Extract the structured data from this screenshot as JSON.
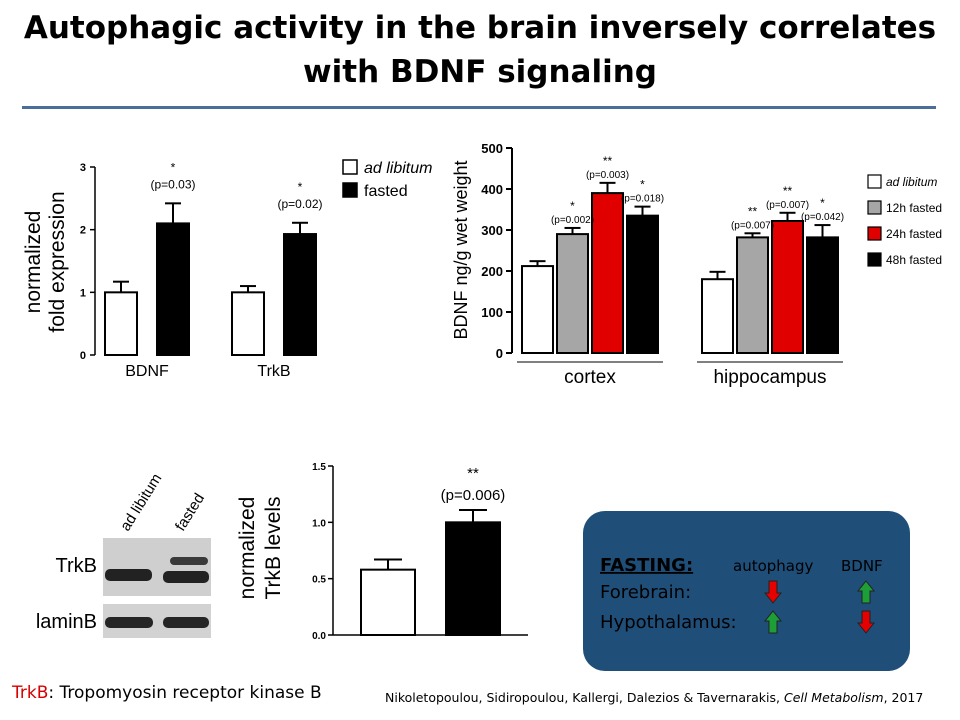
{
  "title": {
    "line1": "Autophagic activity in the brain inversely correlates",
    "line2": "with BDNF signaling"
  },
  "colors": {
    "rule": "#4a6d9a",
    "panel": "#1f4e79",
    "gray": "#a6a6a6",
    "red": "#e00000",
    "black": "#000000",
    "white": "#ffffff",
    "arrow_green": "#1e9e36",
    "arrow_red": "#e60000"
  },
  "chart_data": [
    {
      "type": "bar",
      "ylabel": [
        "normalized",
        "fold expression"
      ],
      "ylim": [
        0,
        3
      ],
      "yticks": [
        "0",
        "1",
        "2",
        "3"
      ],
      "categories": [
        "BDNF",
        "TrkB"
      ],
      "legend": [
        "ad libitum",
        "fasted"
      ],
      "series": [
        {
          "name": "ad libitum",
          "values": [
            1.0,
            1.0
          ],
          "errors": [
            0.17,
            0.1
          ]
        },
        {
          "name": "fasted",
          "values": [
            2.1,
            1.93
          ],
          "errors": [
            0.32,
            0.18
          ]
        }
      ],
      "annotations": [
        {
          "category": "BDNF",
          "stars": "*",
          "p": "(p=0.03)"
        },
        {
          "category": "TrkB",
          "stars": "*",
          "p": "(p=0.02)"
        }
      ]
    },
    {
      "type": "bar",
      "ylabel": "BDNF  ng/g wet weight",
      "ylim": [
        0,
        500
      ],
      "yticks": [
        "0",
        "100",
        "200",
        "300",
        "400",
        "500"
      ],
      "categories": [
        "cortex",
        "hippocampus"
      ],
      "legend": [
        "ad libitum",
        "12h fasted",
        "24h fasted",
        "48h fasted"
      ],
      "series": [
        {
          "name": "ad libitum",
          "values": [
            212,
            180
          ],
          "errors": [
            12,
            18
          ]
        },
        {
          "name": "12h fasted",
          "values": [
            290,
            282
          ],
          "errors": [
            15,
            10
          ]
        },
        {
          "name": "24h fasted",
          "values": [
            390,
            322
          ],
          "errors": [
            25,
            20
          ]
        },
        {
          "name": "48h fasted",
          "values": [
            335,
            282
          ],
          "errors": [
            22,
            30
          ]
        }
      ],
      "annotations": [
        {
          "category": "cortex",
          "series": "12h fasted",
          "stars": "*",
          "p": "(p=0.002)"
        },
        {
          "category": "cortex",
          "series": "24h fasted",
          "stars": "**",
          "p": "(p=0.003)"
        },
        {
          "category": "cortex",
          "series": "48h fasted",
          "stars": "*",
          "p": "(p=0.018)"
        },
        {
          "category": "hippocampus",
          "series": "12h fasted",
          "stars": "**",
          "p": "(p=0.007)"
        },
        {
          "category": "hippocampus",
          "series": "24h fasted",
          "stars": "**",
          "p": "(p=0.007)"
        },
        {
          "category": "hippocampus",
          "series": "48h fasted",
          "stars": "*",
          "p": "(p=0.042)"
        }
      ]
    },
    {
      "type": "bar",
      "ylabel": [
        "normalized",
        "TrkB levels"
      ],
      "ylim": [
        0,
        1.5
      ],
      "yticks": [
        "0.0",
        "0.5",
        "1.0",
        "1.5"
      ],
      "series": [
        {
          "name": "ad libitum",
          "values": [
            0.58
          ],
          "errors": [
            0.09
          ]
        },
        {
          "name": "fasted",
          "values": [
            1.0
          ],
          "errors": [
            0.11
          ]
        }
      ],
      "annotations": [
        {
          "stars": "**",
          "p": "(p=0.006)"
        }
      ]
    }
  ],
  "blot": {
    "columns": [
      "ad libitum",
      "fasted"
    ],
    "rows": [
      "TrkB",
      "laminB"
    ]
  },
  "summary": {
    "heading": "FASTING:",
    "col1": "autophagy",
    "col2": "BDNF",
    "rows": [
      {
        "label": "Forebrain:",
        "autophagy": "down",
        "bdnf": "up"
      },
      {
        "label": "Hypothalamus:",
        "autophagy": "up",
        "bdnf": "down"
      }
    ]
  },
  "footer": {
    "abbr": "TrkB",
    "abbr_def": ": Tropomyosin receptor kinase B",
    "citation_authors": "Nikoletopoulou,  Sidiropoulou,  Kallergi, Dalezios & Tavernarakis, ",
    "citation_journal": "Cell Metabolism",
    "citation_year": ", 2017"
  }
}
